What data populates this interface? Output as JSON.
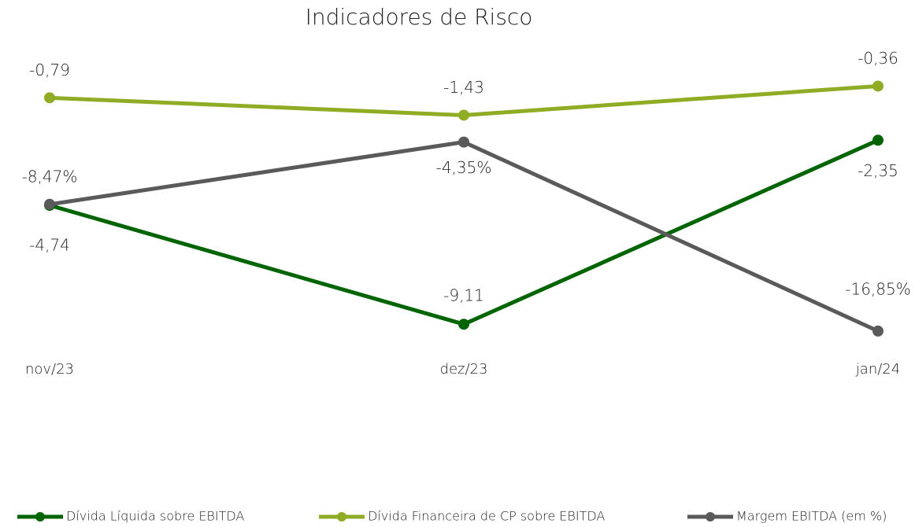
{
  "chart_data": {
    "type": "line",
    "title": "Indicadores de Risco",
    "categories": [
      "nov/23",
      "dez/23",
      "jan/24"
    ],
    "ylim": [
      -10,
      0
    ],
    "y2lim": [
      -18,
      0
    ],
    "series": [
      {
        "name": "Dívida Líquida sobre EBITDA",
        "color": "#006400",
        "values": [
          -4.74,
          -9.11,
          -2.35
        ],
        "value_labels": [
          "-4,74",
          "-9,11",
          "-2,35"
        ]
      },
      {
        "name": "Dívida Financeira de CP sobre EBITDA",
        "color": "#8fac24",
        "values": [
          -0.79,
          -1.43,
          -0.36
        ],
        "value_labels": [
          "-0,79",
          "-1,43",
          "-0,36"
        ]
      },
      {
        "name": "Margem EBITDA (em %)",
        "color": "#5a5a5a",
        "axis": "y2",
        "values": [
          -8.47,
          -4.35,
          -16.85
        ],
        "value_labels": [
          "-8,47%",
          "-4,35%",
          "-16,85%"
        ]
      }
    ]
  }
}
